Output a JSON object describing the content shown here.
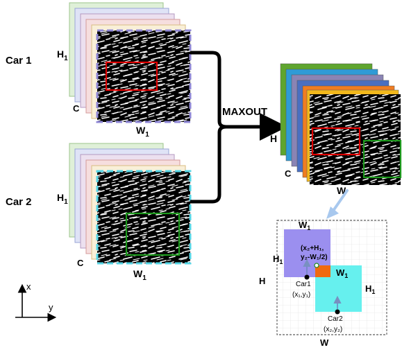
{
  "inputs": [
    {
      "label": "Car 1",
      "height_label": "H",
      "height_sub": "1",
      "width_label": "W",
      "width_sub": "1",
      "channel_label": "C",
      "box_color": "#e00000",
      "border_color": "#8f87d6"
    },
    {
      "label": "Car 2",
      "height_label": "H",
      "height_sub": "1",
      "width_label": "W",
      "width_sub": "1",
      "channel_label": "C",
      "box_color": "#1d9a1d",
      "border_color": "#55d6e6"
    }
  ],
  "operation": {
    "label": "MAXOUT"
  },
  "output": {
    "height_label": "H",
    "width_label": "W",
    "channel_label": "C",
    "layer_colors": [
      "#5fa52e",
      "#2f9bd6",
      "#8a84b4",
      "#4a6fc1",
      "#ef7d22",
      "#f2b81c"
    ]
  },
  "detail": {
    "width_top": {
      "main": "W",
      "sub": "1"
    },
    "height_left": {
      "main": "H",
      "sub": "1"
    },
    "outer_height": "H",
    "outer_width": "W",
    "mid_width": {
      "main": "W",
      "sub": "1"
    },
    "right_height": {
      "main": "H",
      "sub": "1"
    },
    "offset_line1": "(x₂+H₁,",
    "offset_line2": "y₂-W₁/2)",
    "car1_name": "Car1",
    "car1_coord": "(x₁,y₁)",
    "car2_name": "Car2",
    "car2_coord": "(x₂,y₂)",
    "colors": {
      "car1": "#9b8fef",
      "car2": "#66f0ee",
      "overlap": "#f06a10"
    }
  },
  "axes": {
    "x_label": "x",
    "y_label": "y"
  }
}
